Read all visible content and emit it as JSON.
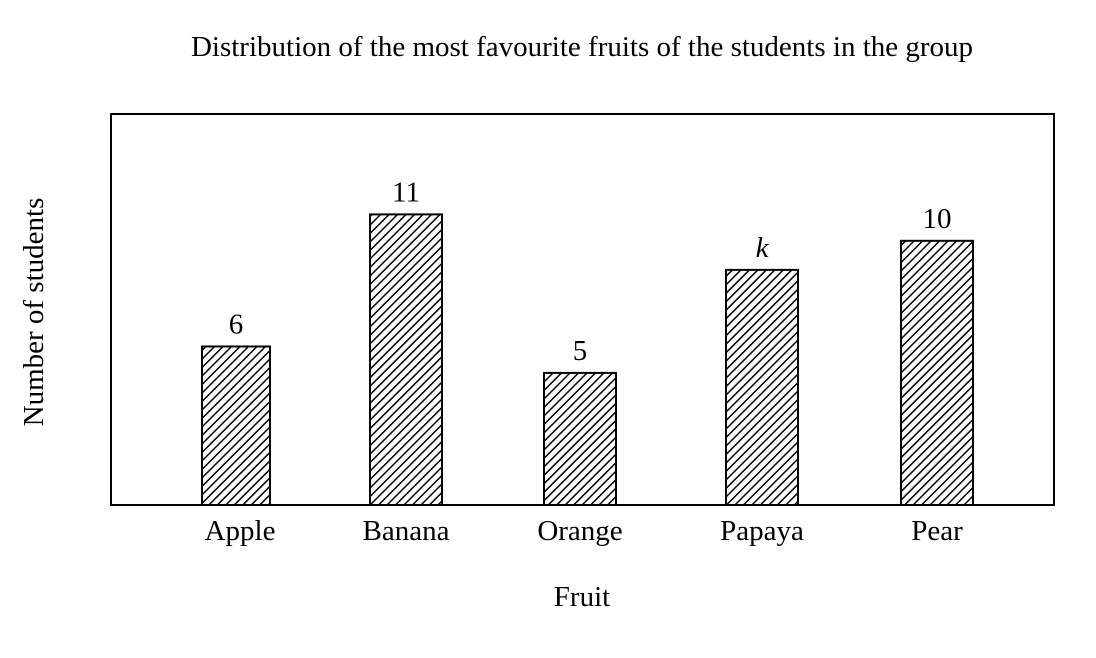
{
  "chart_data": {
    "type": "bar",
    "title": "Distribution of the most favourite fruits of the students in the group",
    "xlabel": "Fruit",
    "ylabel": "Number of students",
    "categories": [
      "Apple",
      "Banana",
      "Orange",
      "Papaya",
      "Pear"
    ],
    "values": [
      6,
      11,
      5,
      8.9,
      10
    ],
    "data_labels": [
      "6",
      "11",
      "5",
      "k",
      "10"
    ],
    "ylim": [
      0,
      14.8
    ],
    "grid": false,
    "legend": "none",
    "bar_fill": "diagonal-hatch",
    "colors": {
      "bar_stroke": "#000000",
      "hatch": "#000000",
      "bar_background": "#ffffff",
      "frame": "#000000"
    }
  }
}
